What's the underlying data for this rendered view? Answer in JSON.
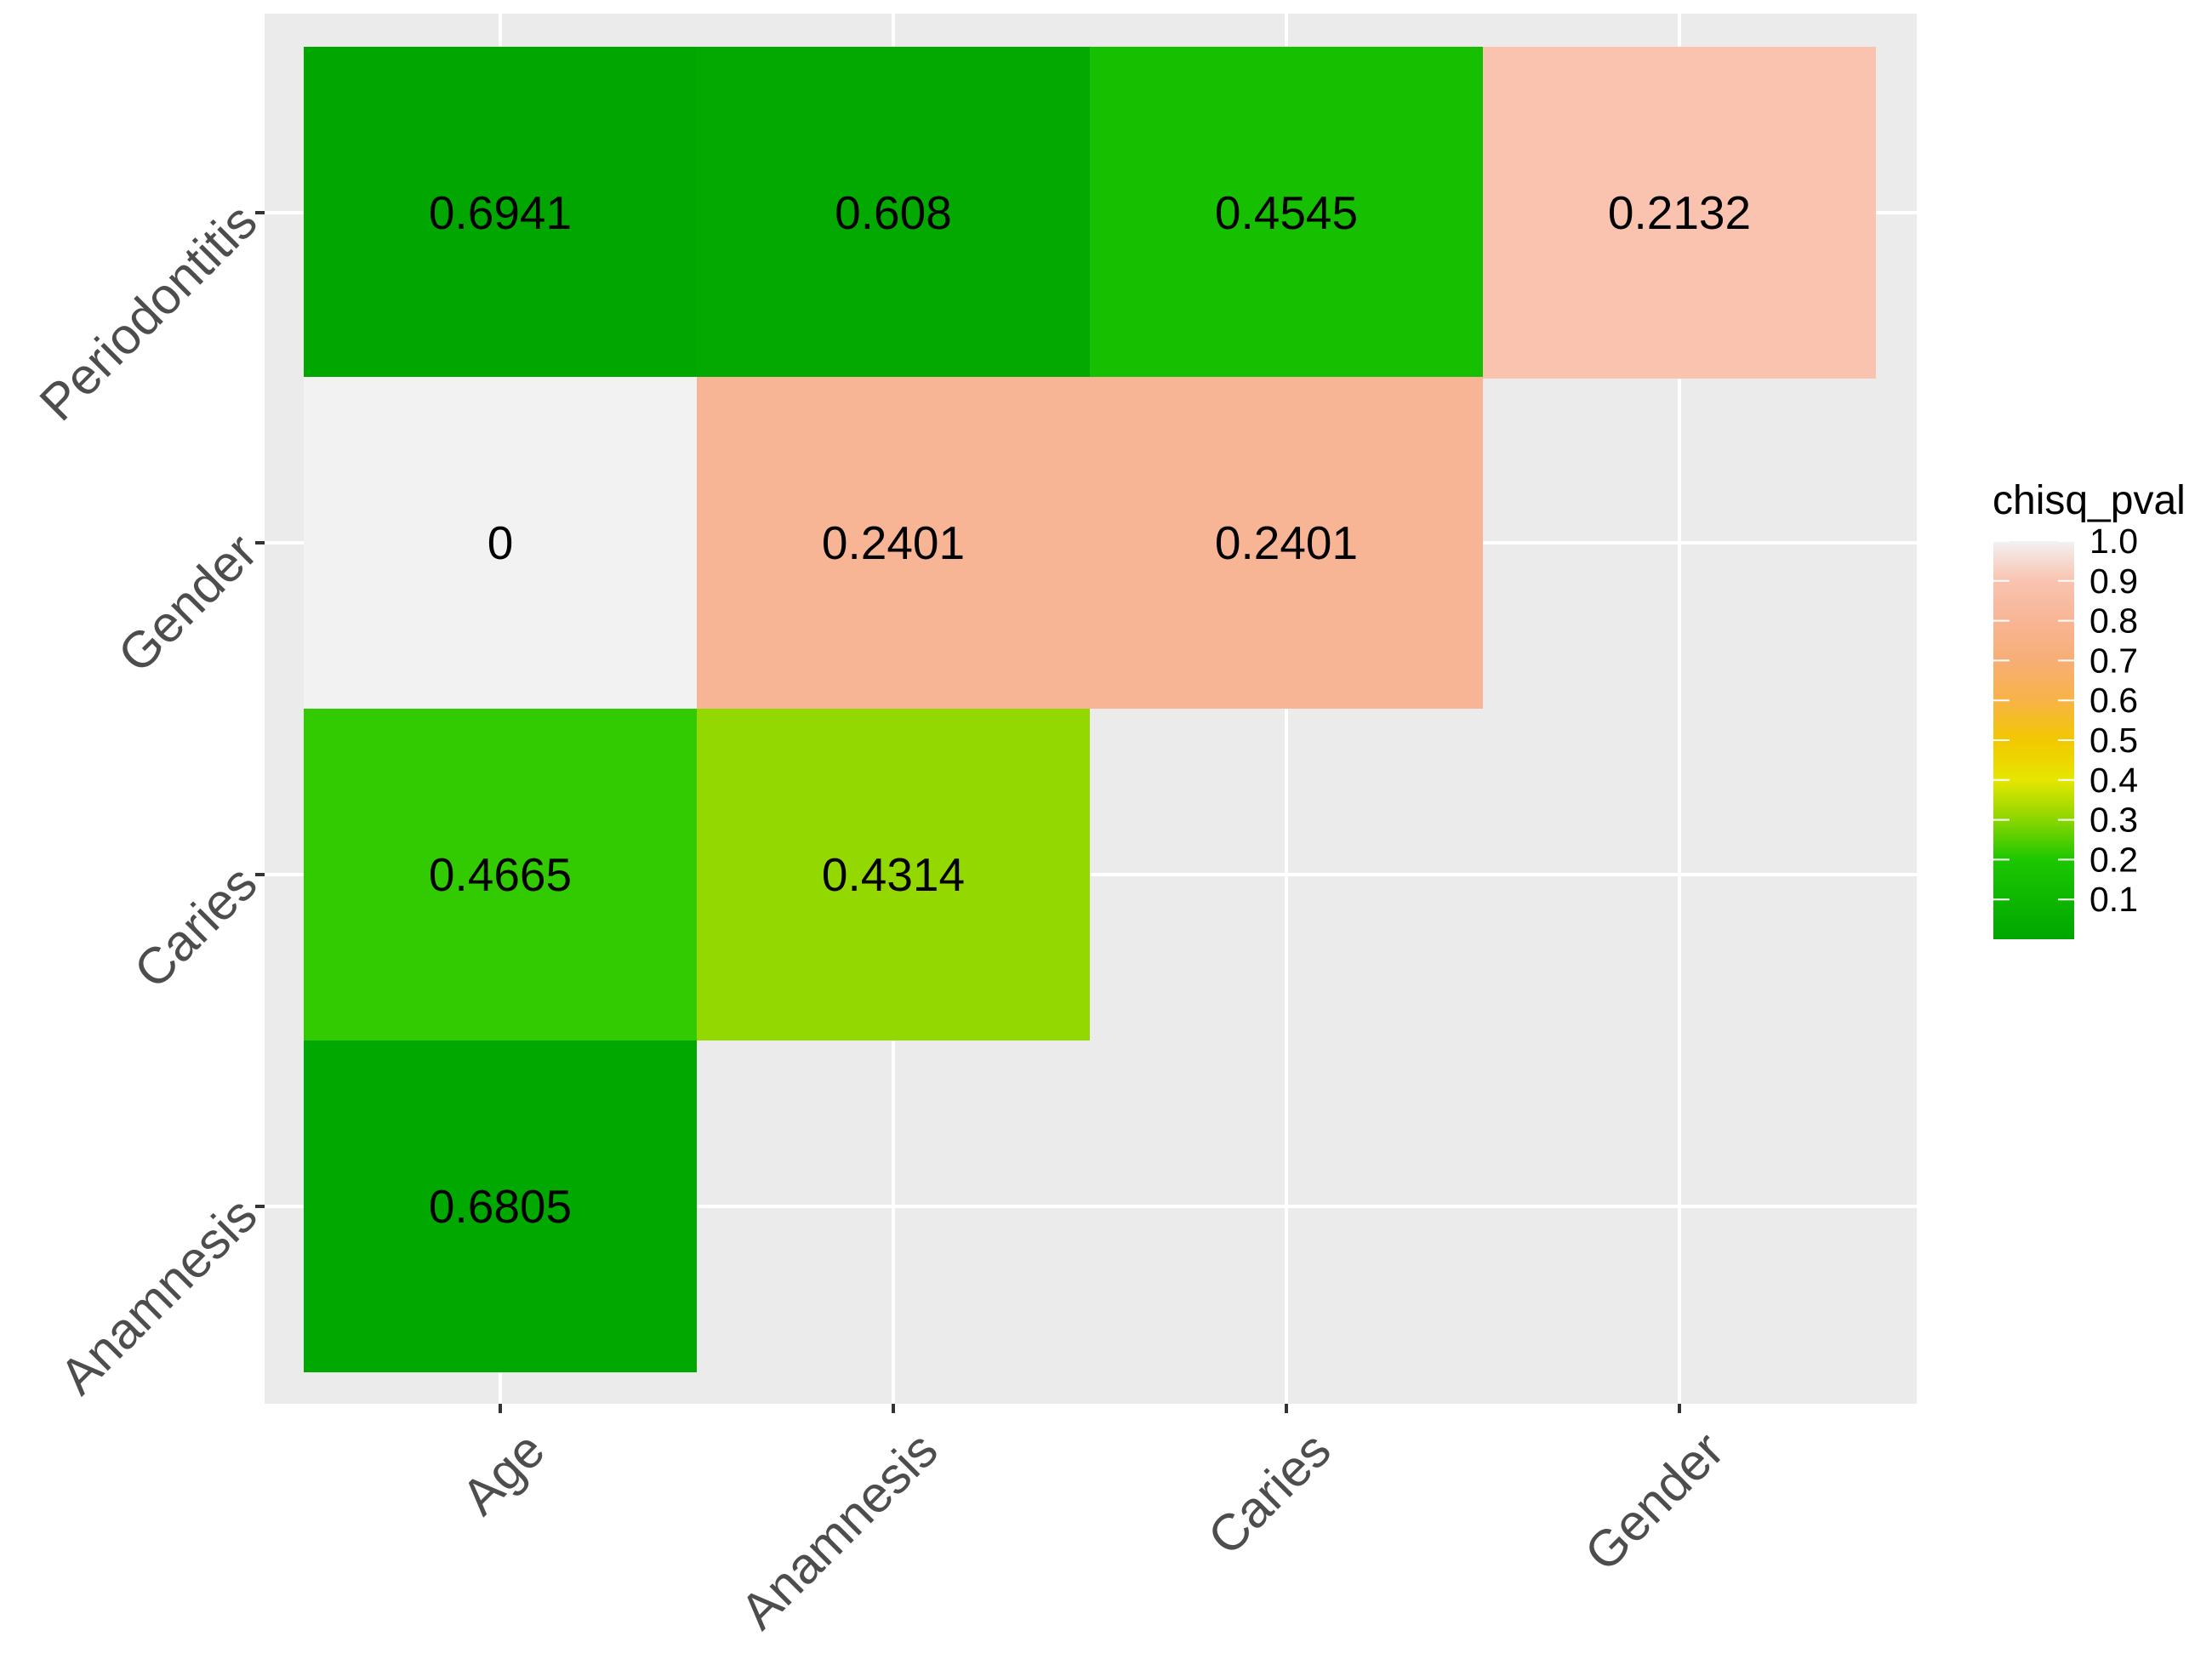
{
  "chart_data": {
    "type": "heatmap",
    "x_categories": [
      "Age",
      "Anamnesis",
      "Caries",
      "Gender"
    ],
    "y_categories": [
      "Anamnesis",
      "Caries",
      "Gender",
      "Periodontitis"
    ],
    "cells": [
      {
        "x": "Age",
        "y": "Periodontitis",
        "label": "0.6941",
        "color_value": 0.005
      },
      {
        "x": "Anamnesis",
        "y": "Periodontitis",
        "label": "0.608",
        "color_value": 0.02
      },
      {
        "x": "Caries",
        "y": "Periodontitis",
        "label": "0.4545",
        "color_value": 0.16
      },
      {
        "x": "Gender",
        "y": "Periodontitis",
        "label": "0.2132",
        "color_value": 0.9
      },
      {
        "x": "Age",
        "y": "Gender",
        "label": "0",
        "color_value": 1.0
      },
      {
        "x": "Anamnesis",
        "y": "Gender",
        "label": "0.2401",
        "color_value": 0.8
      },
      {
        "x": "Caries",
        "y": "Gender",
        "label": "0.2401",
        "color_value": 0.8
      },
      {
        "x": "Age",
        "y": "Caries",
        "label": "0.4665",
        "color_value": 0.22
      },
      {
        "x": "Anamnesis",
        "y": "Caries",
        "label": "0.4314",
        "color_value": 0.31
      },
      {
        "x": "Age",
        "y": "Anamnesis",
        "label": "0.6805",
        "color_value": 0.01
      }
    ],
    "legend": {
      "title": "chisq_pval",
      "ticks": [
        "1.0",
        "0.9",
        "0.8",
        "0.7",
        "0.6",
        "0.5",
        "0.4",
        "0.3",
        "0.2",
        "0.1"
      ],
      "range": [
        0,
        1
      ],
      "placement": "right"
    },
    "colors": {
      "panel_background": "#EBEBEB",
      "grid": "#FFFFFF",
      "axis_text": "#4D4D4D",
      "tick": "#333333",
      "scale_stops": [
        {
          "value": 0.0,
          "color": "#00A600"
        },
        {
          "value": 0.2,
          "color": "#1CC700"
        },
        {
          "value": 0.3,
          "color": "#8AD600"
        },
        {
          "value": 0.4,
          "color": "#E6E600"
        },
        {
          "value": 0.5,
          "color": "#F2C800"
        },
        {
          "value": 0.6,
          "color": "#F8B347"
        },
        {
          "value": 0.7,
          "color": "#F7AE76"
        },
        {
          "value": 0.8,
          "color": "#F8B595"
        },
        {
          "value": 0.9,
          "color": "#F9C3B0"
        },
        {
          "value": 1.0,
          "color": "#F2F2F2"
        }
      ]
    },
    "grid": true
  }
}
